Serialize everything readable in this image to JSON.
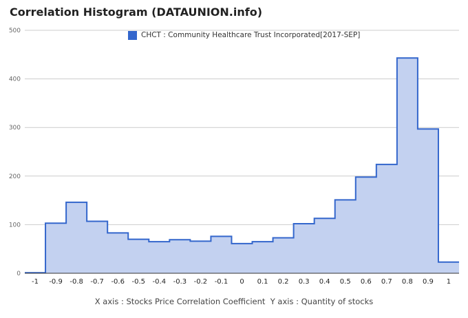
{
  "title": "Correlation Histogram (DATAUNION.info)",
  "axis_caption": "X axis : Stocks Price Correlation Coefficient  Y axis : Quantity of stocks",
  "colors": {
    "series_line": "#3366cc",
    "series_fill": "#c3d1f0",
    "grid": "#cccccc"
  },
  "chart_data": {
    "type": "area",
    "x_ticks": [
      "-1",
      "-0.9",
      "-0.8",
      "-0.7",
      "-0.6",
      "-0.5",
      "-0.4",
      "-0.3",
      "-0.2",
      "-0.1",
      "0",
      "0.1",
      "0.2",
      "0.3",
      "0.4",
      "0.5",
      "0.6",
      "0.7",
      "0.8",
      "0.9",
      "1"
    ],
    "y_ticks": [
      "0",
      "100",
      "200",
      "300",
      "400",
      "500"
    ],
    "xlim": [
      -1.05,
      1.05
    ],
    "ylim": [
      0,
      500
    ],
    "grid": true,
    "legend_position": "top",
    "step_edges": [
      -1.05,
      -0.95,
      -0.85,
      -0.75,
      -0.65,
      -0.55,
      -0.45,
      -0.35,
      -0.25,
      -0.15,
      -0.05,
      0.05,
      0.15,
      0.25,
      0.35,
      0.45,
      0.55,
      0.65,
      0.75,
      0.85,
      0.95,
      1.05
    ],
    "series": [
      {
        "name": "CHCT : Community Healthcare Trust Incorporated[2017-SEP]",
        "values": [
          1,
          103,
          146,
          107,
          83,
          70,
          65,
          69,
          66,
          76,
          61,
          65,
          73,
          102,
          113,
          151,
          198,
          224,
          443,
          297,
          23
        ]
      }
    ]
  }
}
